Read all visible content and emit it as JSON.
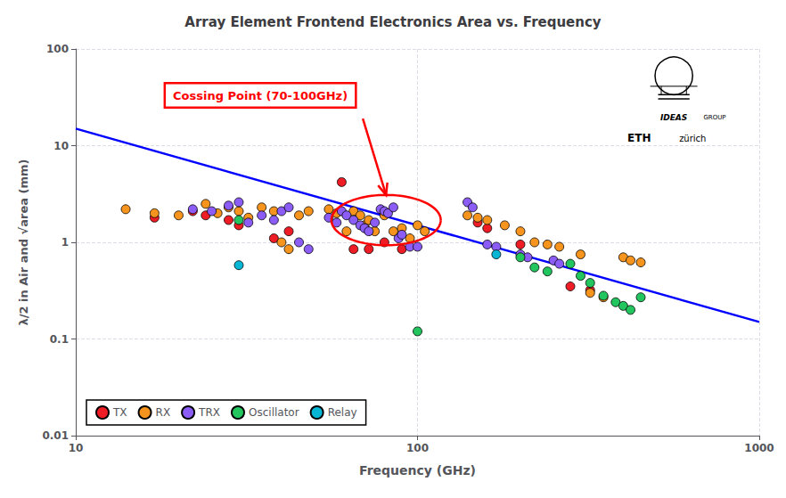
{
  "chart_data": {
    "type": "scatter",
    "title": "Array Element Frontend Electronics Area vs. Frequency",
    "xlabel": "Frequency (GHz)",
    "ylabel": "λ/2 in Air and √area (mm)",
    "log": true,
    "grid": true,
    "legend": "lower left",
    "xlim": [
      10,
      1000
    ],
    "ylim": [
      0.01,
      100
    ],
    "xticks": [
      10,
      100,
      1000
    ],
    "yticks": [
      0.01,
      0.1,
      1,
      10,
      100
    ],
    "series": [
      {
        "type": "line",
        "color": "blue",
        "x": [
          10,
          1000
        ],
        "values": [
          15.0,
          0.15
        ]
      },
      {
        "name": "TX",
        "type": "scatter",
        "color": "#ee1c25",
        "x": [
          17,
          22,
          24,
          28,
          30,
          38,
          42,
          60,
          65,
          72,
          80,
          90,
          150,
          160,
          200,
          280,
          320
        ],
        "values": [
          1.8,
          2.1,
          1.9,
          1.7,
          1.5,
          1.1,
          1.3,
          4.2,
          0.85,
          0.85,
          1.0,
          0.85,
          1.6,
          1.4,
          0.95,
          0.35,
          0.32
        ]
      },
      {
        "name": "RX",
        "type": "scatter",
        "color": "#f7941d",
        "x": [
          14,
          17,
          20,
          24,
          26,
          28,
          30,
          32,
          35,
          38,
          40,
          42,
          45,
          48,
          55,
          58,
          62,
          65,
          68,
          70,
          72,
          75,
          80,
          85,
          90,
          95,
          100,
          105,
          140,
          150,
          160,
          180,
          200,
          220,
          240,
          260,
          300,
          320,
          350,
          400,
          420,
          450
        ],
        "values": [
          2.2,
          2.0,
          1.9,
          2.5,
          2.0,
          2.3,
          2.1,
          1.8,
          2.3,
          2.1,
          1.0,
          0.85,
          1.9,
          2.1,
          2.2,
          2.0,
          1.3,
          2.1,
          1.9,
          1.5,
          1.7,
          1.3,
          1.9,
          1.3,
          1.4,
          1.1,
          1.5,
          1.3,
          1.9,
          1.8,
          1.7,
          1.5,
          1.3,
          1.0,
          0.95,
          0.9,
          0.75,
          0.3,
          0.27,
          0.7,
          0.65,
          0.62
        ]
      },
      {
        "name": "TRX",
        "type": "scatter",
        "color": "#8b5cf6",
        "x": [
          22,
          25,
          28,
          30,
          32,
          35,
          38,
          40,
          42,
          45,
          48,
          55,
          58,
          60,
          62,
          65,
          68,
          70,
          72,
          75,
          78,
          80,
          82,
          85,
          88,
          90,
          95,
          100,
          140,
          145,
          160,
          170,
          200,
          210,
          250,
          260
        ],
        "values": [
          2.2,
          2.1,
          2.4,
          2.6,
          1.6,
          1.9,
          1.7,
          2.1,
          2.3,
          1.0,
          0.85,
          1.8,
          1.6,
          2.1,
          1.9,
          1.7,
          1.5,
          1.4,
          1.3,
          1.6,
          2.2,
          2.1,
          2.0,
          2.3,
          1.1,
          1.2,
          0.9,
          0.9,
          2.6,
          2.3,
          0.95,
          0.9,
          0.75,
          0.7,
          0.65,
          0.6
        ]
      },
      {
        "name": "Oscillator",
        "type": "scatter",
        "color": "#22c55e",
        "x": [
          30,
          100,
          200,
          220,
          240,
          280,
          300,
          320,
          350,
          380,
          400,
          420,
          450
        ],
        "values": [
          1.7,
          0.12,
          0.7,
          0.55,
          0.5,
          0.6,
          0.45,
          0.38,
          0.28,
          0.24,
          0.22,
          0.2,
          0.27
        ]
      },
      {
        "name": "Relay",
        "type": "scatter",
        "color": "#06b6d4",
        "x": [
          30,
          170
        ],
        "values": [
          0.58,
          0.75
        ]
      }
    ],
    "annotations": [
      {
        "text": "Cossing Point (70-100GHz)",
        "color": "red",
        "ellipse": {
          "center_logx": 1.908,
          "center_logy": 0.23,
          "width_log": 0.32,
          "height_log": 0.52
        }
      }
    ],
    "logo_texts": [
      "IDEAS",
      "GROUP",
      "ETH",
      "zürich"
    ]
  }
}
